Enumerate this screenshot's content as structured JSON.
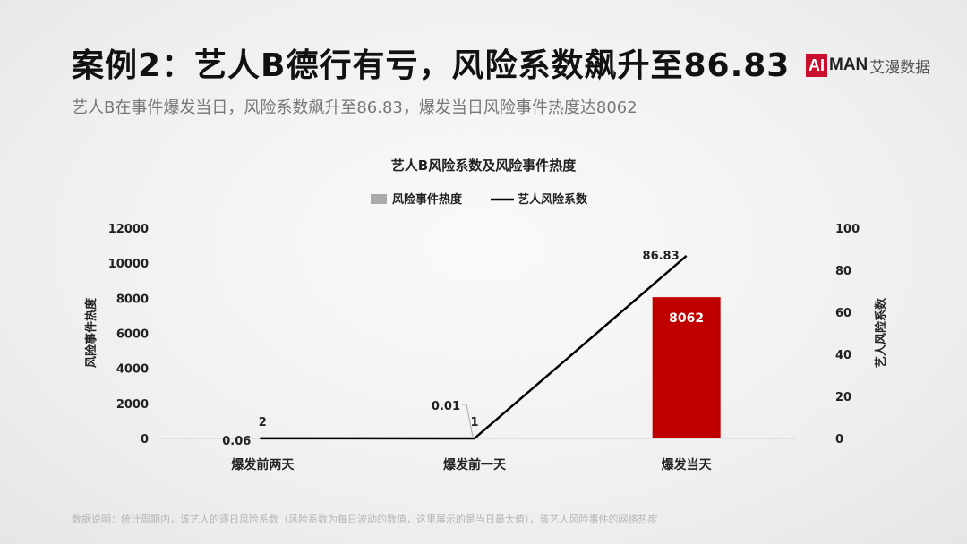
{
  "header": {
    "title": "案例2：艺人B德行有亏，风险系数飙升至86.83",
    "subtitle": "艺人B在事件爆发当日，风险系数飙升至86.83，爆发当日风险事件热度达8062"
  },
  "logo": {
    "ai": "AI",
    "man": "MAN",
    "cn": "艾漫数据",
    "accent_color": "#c8102e"
  },
  "footnote": "数据说明：统计周期内，该艺人的逐日风险系数（风险系数为每日波动的数值，这里展示的是当日最大值），该艺人风险事件的网络热度",
  "chart_data": {
    "type": "bar+line",
    "title": "艺人B风险系数及风险事件热度",
    "categories": [
      "爆发前两天",
      "爆发前一天",
      "爆发当天"
    ],
    "series": [
      {
        "name": "风险事件热度",
        "type": "bar",
        "axis": "left",
        "values": [
          2,
          1,
          8062
        ],
        "data_labels": [
          "2",
          "1",
          "8062"
        ],
        "colors": [
          "#aaaaaa",
          "#aaaaaa",
          "#c00000"
        ]
      },
      {
        "name": "艺人风险系数",
        "type": "line",
        "axis": "right",
        "values": [
          0.06,
          0.01,
          86.83
        ],
        "data_labels": [
          "0.06",
          "0.01",
          "86.83"
        ],
        "color": "#000000"
      }
    ],
    "y_left": {
      "label": "风险事件热度",
      "range": [
        0,
        12000
      ],
      "ticks": [
        "0",
        "2000",
        "4000",
        "6000",
        "8000",
        "10000",
        "12000"
      ]
    },
    "y_right": {
      "label": "艺人风险系数",
      "range": [
        0,
        100
      ],
      "ticks": [
        "0",
        "20",
        "40",
        "60",
        "80",
        "100"
      ]
    },
    "legend_position": "top-center",
    "grid": false
  }
}
